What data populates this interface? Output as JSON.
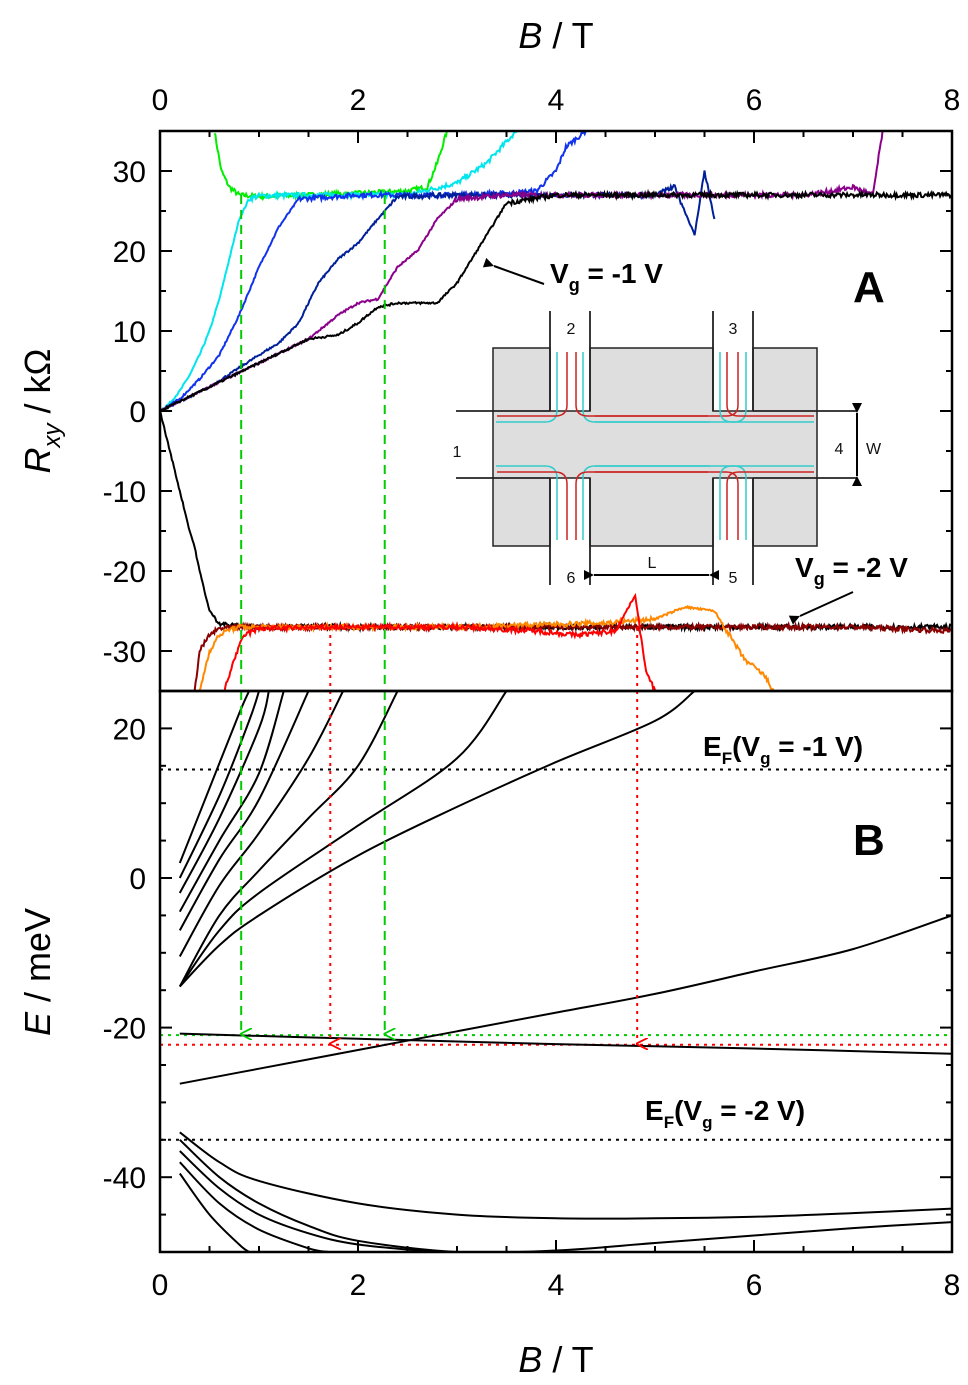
{
  "chart_data": [
    {
      "panel": "A",
      "type": "line",
      "panel_label": "A",
      "xlabel": {
        "var": "B",
        "unit": " / T"
      },
      "ylabel": {
        "var": "R",
        "sub": "xy",
        "unit": " / kΩ"
      },
      "xlim": [
        0,
        8
      ],
      "ylim": [
        -35,
        35
      ],
      "xticks": [
        "0",
        "2",
        "4",
        "6",
        "8"
      ],
      "yticks": [
        "30",
        "20",
        "10",
        "0",
        "-10",
        "-20",
        "-30"
      ],
      "ytick_values": [
        30,
        20,
        10,
        0,
        -10,
        -20,
        -30
      ],
      "annotations": [
        {
          "text": "V_g = -1 V",
          "base": "V",
          "sub": "g",
          "rest": " = -1 V"
        },
        {
          "text": "V_g = -2 V",
          "base": "V",
          "sub": "g",
          "rest": " = -2 V"
        }
      ],
      "series": [
        {
          "color": "#00ee00",
          "x": [
            0.55,
            0.62,
            0.7,
            0.8,
            1.0,
            1.5,
            2.0,
            2.5,
            2.7,
            2.8,
            2.9
          ],
          "y": [
            35,
            30,
            28,
            27,
            26.8,
            27,
            27.2,
            27.5,
            28,
            31,
            35
          ]
        },
        {
          "color": "#00e5ee",
          "x": [
            0,
            0.1,
            0.2,
            0.3,
            0.4,
            0.5,
            0.6,
            0.7,
            0.8,
            0.9,
            1.0,
            1.5,
            2.0,
            2.5,
            3.0,
            3.3,
            3.6
          ],
          "y": [
            0,
            1,
            2.5,
            4.5,
            7,
            10,
            14,
            19,
            24,
            26.5,
            26.9,
            27,
            27,
            27,
            28.5,
            31,
            35
          ]
        },
        {
          "color": "#1133ee",
          "x": [
            0,
            0.2,
            0.4,
            0.6,
            0.8,
            1.0,
            1.2,
            1.4,
            2.0,
            3.0,
            3.5,
            3.8,
            4.0,
            4.1,
            4.3
          ],
          "y": [
            0,
            1.5,
            4,
            7,
            12,
            18,
            23,
            26.5,
            27,
            27,
            27.2,
            27.5,
            30,
            33,
            35
          ]
        },
        {
          "color": "#001f99",
          "x": [
            0,
            0.5,
            1.0,
            1.2,
            1.4,
            1.6,
            1.8,
            2.0,
            2.2,
            2.4,
            3.0,
            4.0,
            5.0,
            5.2,
            5.4,
            5.5,
            5.6
          ],
          "y": [
            0,
            3,
            7,
            8.5,
            11,
            16,
            19,
            21,
            24,
            26.8,
            27,
            27,
            27,
            28,
            22,
            30,
            24
          ]
        },
        {
          "color": "#8b008b",
          "x": [
            0,
            0.5,
            1.0,
            1.5,
            1.8,
            2.0,
            2.2,
            2.4,
            2.6,
            2.8,
            3.0,
            3.5,
            5.0,
            6.5,
            6.8,
            7.0,
            7.2,
            7.3
          ],
          "y": [
            0,
            3,
            6,
            9,
            12,
            13.5,
            14,
            18,
            20,
            24,
            26.5,
            27,
            27,
            27,
            27.5,
            28,
            27,
            35
          ]
        },
        {
          "color": "#000000",
          "x": [
            0,
            0.5,
            1.0,
            1.5,
            1.8,
            2.0,
            2.2,
            2.4,
            2.8,
            3.0,
            3.2,
            3.5,
            4.0,
            6.0,
            8.0
          ],
          "y": [
            0,
            3,
            6,
            9,
            9.5,
            11,
            13,
            13.5,
            13.5,
            16,
            20,
            26,
            27,
            27,
            27
          ]
        },
        {
          "color": "#000000",
          "x": [
            0,
            0.1,
            0.2,
            0.3,
            0.35,
            0.4,
            0.5,
            0.6,
            0.7,
            1.0,
            2.0,
            4.0,
            6.0,
            8.0
          ],
          "y": [
            0,
            -5,
            -10,
            -15,
            -17,
            -20,
            -25,
            -26.5,
            -26.8,
            -27,
            -27,
            -27,
            -27,
            -27
          ]
        },
        {
          "color": "#8b0000",
          "x": [
            0.35,
            0.4,
            0.5,
            0.6,
            0.8,
            1.0,
            3.0,
            5.0,
            7.0,
            8.0
          ],
          "y": [
            -35,
            -30,
            -28,
            -27.2,
            -27,
            -27,
            -27,
            -27,
            -27,
            -27.5
          ]
        },
        {
          "color": "#ff8800",
          "x": [
            0.4,
            0.5,
            0.6,
            0.7,
            0.8,
            1.0,
            3.0,
            4.5,
            5.0,
            5.3,
            5.6,
            5.9,
            6.1,
            6.2
          ],
          "y": [
            -35,
            -30,
            -28,
            -27.3,
            -27,
            -27,
            -27,
            -26.5,
            -26,
            -24.5,
            -25,
            -31,
            -33,
            -35
          ]
        },
        {
          "color": "#ff0000",
          "x": [
            0.65,
            0.75,
            0.85,
            1.0,
            2.0,
            3.0,
            3.8,
            4.2,
            4.6,
            4.8,
            4.9,
            5.0
          ],
          "y": [
            -35,
            -31,
            -28,
            -27.2,
            -27,
            -27,
            -27.5,
            -28,
            -27.5,
            -23,
            -32,
            -35
          ]
        }
      ],
      "guides": [
        {
          "color": "#00cc00",
          "style": "dashed",
          "x": 0.82
        },
        {
          "color": "#00cc00",
          "style": "dashed",
          "x": 2.27
        },
        {
          "color": "#ff0000",
          "style": "dotted",
          "x": 1.72
        },
        {
          "color": "#ff0000",
          "style": "dotted",
          "x": 4.82
        }
      ],
      "inset": {
        "terminal_labels": [
          "1",
          "2",
          "3",
          "4",
          "5",
          "6"
        ],
        "dimension_labels": [
          "W",
          "L"
        ],
        "edge_colors": [
          "#33cccc",
          "#cc2222"
        ]
      }
    },
    {
      "panel": "B",
      "type": "line",
      "panel_label": "B",
      "xlabel": {
        "var": "B",
        "unit": " / T"
      },
      "ylabel": {
        "var": "E",
        "unit": " / meV"
      },
      "xlim": [
        0,
        8
      ],
      "ylim": [
        -50,
        25
      ],
      "xticks": [
        "0",
        "2",
        "4",
        "6",
        "8"
      ],
      "yticks": [
        "20",
        "0",
        "-20",
        "-40"
      ],
      "ytick_values": [
        20,
        0,
        -20,
        -40
      ],
      "annotations": [
        {
          "text": "E_F(V_g = -1 V)",
          "y_ref": 14.5
        },
        {
          "text": "E_F(V_g = -2 V)",
          "y_ref": -35
        }
      ],
      "fermi_levels": [
        {
          "label": "E_F(V_g = -1 V)",
          "y": 14.5
        },
        {
          "label": "E_F(V_g = -2 V)",
          "y": -35
        }
      ],
      "crossing_levels": [
        {
          "color": "#00cc00",
          "y": -21
        },
        {
          "color": "#ff0000",
          "y": -22.3
        }
      ],
      "arrow_targets": [
        {
          "color": "#00cc00",
          "x": 0.82,
          "y": -21
        },
        {
          "color": "#ff0000",
          "x": 1.72,
          "y": -22.3
        },
        {
          "color": "#00cc00",
          "x": 2.27,
          "y": -21
        },
        {
          "color": "#ff0000",
          "x": 4.82,
          "y": -22.3
        }
      ],
      "landau_levels": [
        {
          "x": [
            0.2,
            0.5,
            0.8,
            0.9
          ],
          "y": [
            2,
            12,
            22,
            25
          ]
        },
        {
          "x": [
            0.2,
            0.6,
            0.9,
            1.0
          ],
          "y": [
            0,
            11,
            21,
            25
          ]
        },
        {
          "x": [
            0.2,
            0.6,
            1.0,
            1.1
          ],
          "y": [
            -2,
            8,
            20,
            25
          ]
        },
        {
          "x": [
            0.2,
            0.6,
            1.0,
            1.25
          ],
          "y": [
            -4.5,
            5,
            14,
            25
          ]
        },
        {
          "x": [
            0.2,
            0.6,
            1.0,
            1.5
          ],
          "y": [
            -7,
            2.5,
            10.5,
            25
          ]
        },
        {
          "x": [
            0.2,
            0.6,
            1.0,
            1.5,
            1.85
          ],
          "y": [
            -10.5,
            -1,
            6,
            16,
            25
          ]
        },
        {
          "x": [
            0.2,
            0.6,
            1.0,
            1.5,
            2.0,
            2.4
          ],
          "y": [
            -14.5,
            -5,
            1,
            8,
            15,
            25
          ]
        },
        {
          "x": [
            0.2,
            0.6,
            1.0,
            2.0,
            3.0,
            3.5
          ],
          "y": [
            -14.5,
            -7,
            -2,
            7,
            16,
            25
          ]
        },
        {
          "x": [
            0.2,
            0.6,
            1.0,
            2.0,
            3.0,
            4.0,
            5.0,
            5.4
          ],
          "y": [
            -14.5,
            -9,
            -5,
            3,
            9.5,
            15.5,
            21,
            25
          ]
        },
        {
          "x": [
            0.2,
            1.0,
            2.0,
            3.0,
            4.0,
            5.0,
            6.0,
            7.0,
            8.0
          ],
          "y": [
            -27.5,
            -25.5,
            -23,
            -20.5,
            -18,
            -15.5,
            -12.5,
            -9.5,
            -5
          ]
        },
        {
          "x": [
            0.2,
            2.0,
            4.0,
            6.0,
            8.0
          ],
          "y": [
            -20.8,
            -21.5,
            -22.2,
            -22.8,
            -23.5
          ]
        },
        {
          "x": [
            0.2,
            0.6,
            1.0,
            2.0,
            3.0,
            4.0,
            5.0,
            6.0,
            7.0,
            8.0
          ],
          "y": [
            -34,
            -38,
            -40.5,
            -43.5,
            -45,
            -45.5,
            -45.5,
            -45.3,
            -44.8,
            -44.2
          ]
        },
        {
          "x": [
            0.2,
            0.6,
            1.0,
            1.5,
            2.0,
            3.0,
            4.0,
            5.0,
            6.0,
            7.0,
            8.0
          ],
          "y": [
            -35,
            -40,
            -43.5,
            -46.5,
            -48.5,
            -50,
            -49.8,
            -48.8,
            -47.8,
            -46.8,
            -46
          ]
        },
        {
          "x": [
            0.2,
            0.6,
            1.0,
            1.5,
            2.0,
            2.8
          ],
          "y": [
            -36.5,
            -41.5,
            -45,
            -47.5,
            -49,
            -50
          ]
        },
        {
          "x": [
            0.2,
            0.6,
            1.0,
            1.5,
            1.7
          ],
          "y": [
            -38,
            -43.5,
            -47,
            -49.5,
            -50
          ]
        },
        {
          "x": [
            0.2,
            0.5,
            0.8,
            0.9
          ],
          "y": [
            -39.5,
            -45,
            -49,
            -50
          ]
        }
      ]
    }
  ],
  "top_axis": {
    "xlabel": {
      "var": "B",
      "unit": " / T"
    },
    "xticks": [
      "0",
      "2",
      "4",
      "6",
      "8"
    ]
  }
}
